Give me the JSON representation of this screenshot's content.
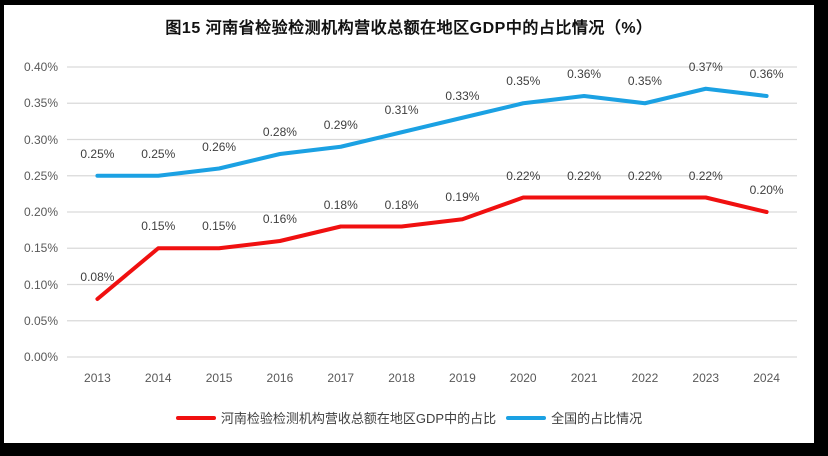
{
  "chart_data": {
    "type": "line",
    "title": "图15  河南省检验检测机构营收总额在地区GDP中的占比情况（%）",
    "categories": [
      "2013",
      "2014",
      "2015",
      "2016",
      "2017",
      "2018",
      "2019",
      "2020",
      "2021",
      "2022",
      "2023",
      "2024"
    ],
    "series": [
      {
        "name": "河南检验检测机构营收总额在地区GDP中的占比",
        "color": "#f01010",
        "values": [
          0.08,
          0.15,
          0.15,
          0.16,
          0.18,
          0.18,
          0.19,
          0.22,
          0.22,
          0.22,
          0.22,
          0.2
        ],
        "labels": [
          "0.08%",
          "0.15%",
          "0.15%",
          "0.16%",
          "0.18%",
          "0.18%",
          "0.19%",
          "0.22%",
          "0.22%",
          "0.22%",
          "0.22%",
          "0.20%"
        ]
      },
      {
        "name": "全国的占比情况",
        "color": "#1ba1e3",
        "values": [
          0.25,
          0.25,
          0.26,
          0.28,
          0.29,
          0.31,
          0.33,
          0.35,
          0.36,
          0.35,
          0.37,
          0.36
        ],
        "labels": [
          "0.25%",
          "0.25%",
          "0.26%",
          "0.28%",
          "0.29%",
          "0.31%",
          "0.33%",
          "0.35%",
          "0.36%",
          "0.35%",
          "0.37%",
          "0.36%"
        ]
      }
    ],
    "y_axis": {
      "min": 0,
      "max": 0.4,
      "tick_values": [
        0,
        0.05,
        0.1,
        0.15,
        0.2,
        0.25,
        0.3,
        0.35,
        0.4
      ],
      "ticks": [
        "0.00%",
        "0.05%",
        "0.10%",
        "0.15%",
        "0.20%",
        "0.25%",
        "0.30%",
        "0.35%",
        "0.40%"
      ],
      "unit": "%"
    },
    "grid": "horizontal",
    "gridline_color": "#d9d9d9",
    "legend_position": "bottom"
  }
}
